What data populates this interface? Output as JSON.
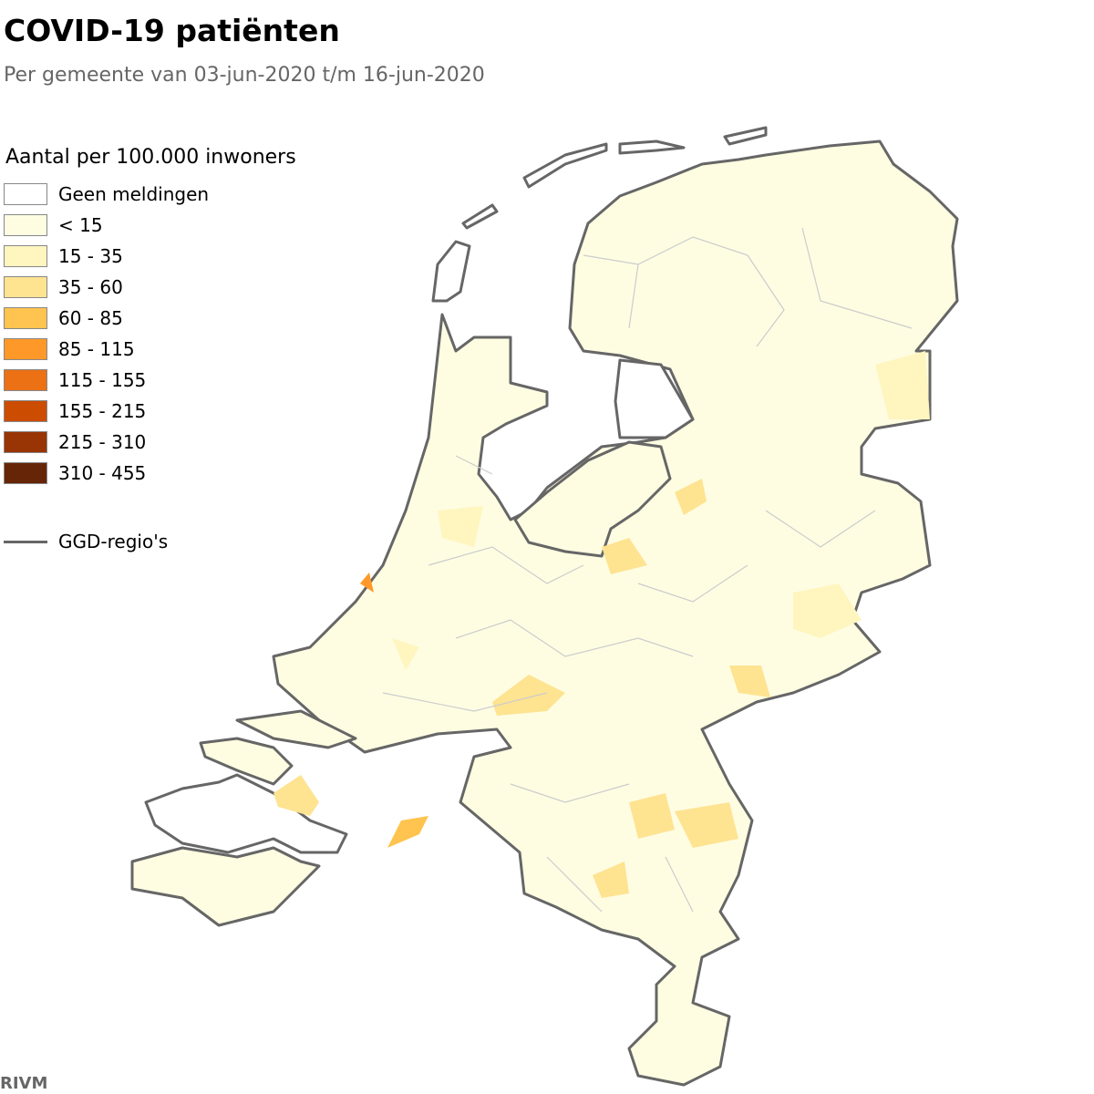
{
  "header": {
    "title": "COVID-19 patiënten",
    "subtitle": "Per gemeente van 03-jun-2020 t/m 16-jun-2020"
  },
  "legend": {
    "title": "Aantal per 100.000 inwoners",
    "items": [
      {
        "label": "Geen meldingen",
        "color": "#ffffff"
      },
      {
        "label": "< 15",
        "color": "#fefde2"
      },
      {
        "label": "15 - 35",
        "color": "#fff5bf"
      },
      {
        "label": "35 - 60",
        "color": "#fee391"
      },
      {
        "label": "60 - 85",
        "color": "#fec44f"
      },
      {
        "label": "85 - 115",
        "color": "#fe9929"
      },
      {
        "label": "115 - 155",
        "color": "#ec7014"
      },
      {
        "label": "155 - 215",
        "color": "#cc4c02"
      },
      {
        "label": "215 - 310",
        "color": "#993404"
      },
      {
        "label": "310 - 455",
        "color": "#662506"
      }
    ],
    "boundary_label": "GGD-regio's"
  },
  "source": "RIVM"
}
